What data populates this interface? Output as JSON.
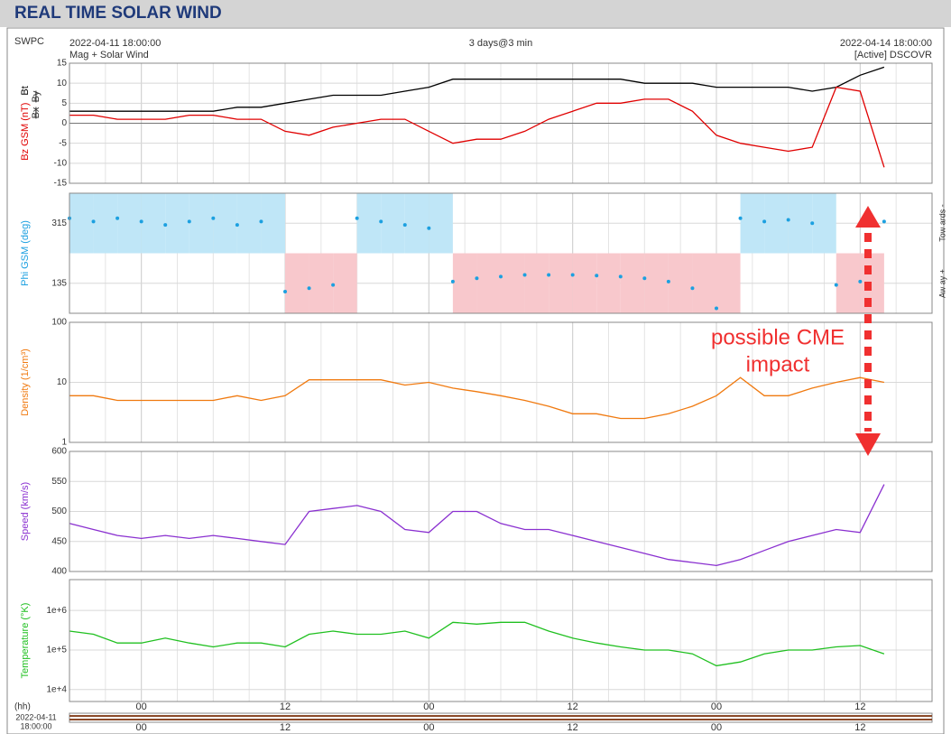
{
  "header": {
    "title": "REAL TIME SOLAR WIND",
    "source": "SWPC",
    "start": "2022-04-11 18:00:00",
    "subtitle": "Mag + Solar Wind",
    "span": "3 days@3 min",
    "end": "2022-04-14 18:00:00",
    "spacecraft": "[Active] DSCOVR"
  },
  "x_axis": {
    "xlim": [
      "2022-04-11 18:00",
      "2022-04-14 18:00"
    ],
    "x": [
      "2022-04-11 18:00",
      "2022-04-11 20:00",
      "2022-04-11 22:00",
      "2022-04-12 00:00",
      "2022-04-12 02:00",
      "2022-04-12 04:00",
      "2022-04-12 06:00",
      "2022-04-12 08:00",
      "2022-04-12 10:00",
      "2022-04-12 12:00",
      "2022-04-12 14:00",
      "2022-04-12 16:00",
      "2022-04-12 18:00",
      "2022-04-12 20:00",
      "2022-04-12 22:00",
      "2022-04-13 00:00",
      "2022-04-13 02:00",
      "2022-04-13 04:00",
      "2022-04-13 06:00",
      "2022-04-13 08:00",
      "2022-04-13 10:00",
      "2022-04-13 12:00",
      "2022-04-13 14:00",
      "2022-04-13 16:00",
      "2022-04-13 18:00",
      "2022-04-13 20:00",
      "2022-04-13 22:00",
      "2022-04-14 00:00",
      "2022-04-14 02:00",
      "2022-04-14 04:00",
      "2022-04-14 06:00",
      "2022-04-14 08:00",
      "2022-04-14 10:00",
      "2022-04-14 12:00",
      "2022-04-14 14:00"
    ],
    "xticks": [
      {
        "value": "2022-04-12 00:00",
        "label": "00"
      },
      {
        "value": "2022-04-12 12:00",
        "label": "12"
      },
      {
        "value": "2022-04-13 00:00",
        "label": "00"
      },
      {
        "value": "2022-04-13 12:00",
        "label": "12"
      },
      {
        "value": "2022-04-14 00:00",
        "label": "00"
      },
      {
        "value": "2022-04-14 12:00",
        "label": "12"
      }
    ],
    "unit_label": "(hh)",
    "start_date": "2022-04-11",
    "start_time": "18:00:00"
  },
  "chart_data": [
    {
      "type": "line",
      "ylim": [
        -15,
        15
      ],
      "yticks": [
        -15,
        -10,
        -5,
        0,
        5,
        10,
        15
      ],
      "log": false,
      "extra_labels": [
        {
          "text": "Bx",
          "color": "#8040c0"
        },
        {
          "text": "By",
          "color": "#20b0e0"
        }
      ],
      "series": [
        {
          "name": "Bt",
          "color": "#000000",
          "values": [
            3,
            3,
            3,
            3,
            3,
            3,
            3,
            4,
            4,
            5,
            6,
            7,
            7,
            7,
            8,
            9,
            11,
            11,
            11,
            11,
            11,
            11,
            11,
            11,
            10,
            10,
            10,
            9,
            9,
            9,
            9,
            8,
            9,
            12,
            14
          ]
        },
        {
          "name": "Bz GSM (nT)",
          "color": "#e00000",
          "values": [
            2,
            2,
            1,
            1,
            1,
            2,
            2,
            1,
            1,
            -2,
            -3,
            -1,
            0,
            1,
            1,
            -2,
            -5,
            -4,
            -4,
            -2,
            1,
            3,
            5,
            5,
            6,
            6,
            3,
            -3,
            -5,
            -6,
            -7,
            -6,
            9,
            8,
            -11
          ]
        }
      ]
    },
    {
      "type": "scatter",
      "ylim": [
        45,
        405
      ],
      "yticks": [
        135,
        315
      ],
      "log": false,
      "toward": "Tow ards -",
      "away": "Aw ay +",
      "series": [
        {
          "name": "Phi GSM (deg)",
          "color": "#1ca0e0",
          "values": [
            330,
            320,
            330,
            320,
            310,
            320,
            330,
            310,
            320,
            110,
            120,
            130,
            330,
            320,
            310,
            300,
            140,
            150,
            155,
            160,
            160,
            160,
            158,
            155,
            150,
            140,
            120,
            60,
            330,
            320,
            325,
            315,
            130,
            140,
            320
          ]
        }
      ]
    },
    {
      "type": "line",
      "ylim": [
        1,
        100
      ],
      "yticks": [
        1,
        10,
        100
      ],
      "log": true,
      "series": [
        {
          "name": "Density (1/cm³)",
          "color": "#f07a10",
          "values": [
            6,
            6,
            5,
            5,
            5,
            5,
            5,
            6,
            5,
            6,
            11,
            11,
            11,
            11,
            9,
            10,
            8,
            7,
            6,
            5,
            4,
            3,
            3,
            2.5,
            2.5,
            3,
            4,
            6,
            12,
            6,
            6,
            8,
            10,
            12,
            10
          ]
        }
      ]
    },
    {
      "type": "line",
      "ylim": [
        400,
        600
      ],
      "yticks": [
        400,
        450,
        500,
        550,
        600
      ],
      "log": false,
      "series": [
        {
          "name": "Speed (km/s)",
          "color": "#8a30d0",
          "values": [
            480,
            470,
            460,
            455,
            460,
            455,
            460,
            455,
            450,
            445,
            500,
            505,
            510,
            500,
            470,
            465,
            500,
            500,
            480,
            470,
            470,
            460,
            450,
            440,
            430,
            420,
            415,
            410,
            420,
            435,
            450,
            460,
            470,
            465,
            545
          ]
        }
      ]
    },
    {
      "type": "line",
      "ylim": [
        5000,
        6000000
      ],
      "yticks": [
        {
          "value": 10000,
          "label": "1e+4"
        },
        {
          "value": 100000,
          "label": "1e+5"
        },
        {
          "value": 1000000,
          "label": "1e+6"
        }
      ],
      "log": true,
      "series": [
        {
          "name": "Temperature (°K)",
          "color": "#20c020",
          "values": [
            300000,
            250000,
            150000,
            150000,
            200000,
            150000,
            120000,
            150000,
            150000,
            120000,
            250000,
            300000,
            250000,
            250000,
            300000,
            200000,
            500000,
            450000,
            500000,
            500000,
            300000,
            200000,
            150000,
            120000,
            100000,
            100000,
            80000,
            40000,
            50000,
            80000,
            100000,
            100000,
            120000,
            130000,
            80000
          ]
        }
      ]
    }
  ],
  "annotation": [
    "possible CME",
    "impact"
  ]
}
